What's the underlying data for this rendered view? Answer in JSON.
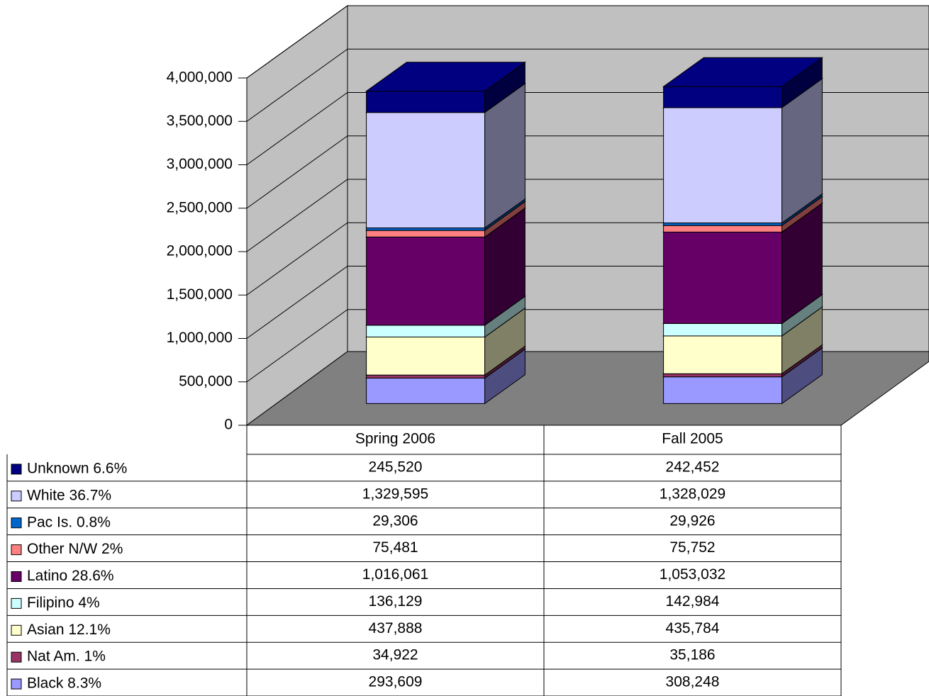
{
  "chart_data": {
    "type": "bar",
    "stacked": true,
    "categories": [
      "Spring 2006",
      "Fall 2005"
    ],
    "series": [
      {
        "name": "Unknown 6.6%",
        "color": "#000080",
        "values": [
          245520,
          242452
        ],
        "value_labels": [
          "245,520",
          "242,452"
        ]
      },
      {
        "name": "White 36.7%",
        "color": "#ccccff",
        "values": [
          1329595,
          1328029
        ],
        "value_labels": [
          "1,329,595",
          "1,328,029"
        ]
      },
      {
        "name": "Pac Is. 0.8%",
        "color": "#0066cc",
        "values": [
          29306,
          29926
        ],
        "value_labels": [
          "29,306",
          "29,926"
        ]
      },
      {
        "name": "Other N/W 2%",
        "color": "#ff8080",
        "values": [
          75481,
          75752
        ],
        "value_labels": [
          "75,481",
          "75,752"
        ]
      },
      {
        "name": "Latino 28.6%",
        "color": "#660066",
        "values": [
          1016061,
          1053032
        ],
        "value_labels": [
          "1,016,061",
          "1,053,032"
        ]
      },
      {
        "name": "Filipino 4%",
        "color": "#ccffff",
        "values": [
          136129,
          142984
        ],
        "value_labels": [
          "136,129",
          "142,984"
        ]
      },
      {
        "name": "Asian 12.1%",
        "color": "#ffffcc",
        "values": [
          437888,
          435784
        ],
        "value_labels": [
          "437,888",
          "435,784"
        ]
      },
      {
        "name": "Nat Am. 1%",
        "color": "#993366",
        "values": [
          34922,
          35186
        ],
        "value_labels": [
          "34,922",
          "35,186"
        ]
      },
      {
        "name": "Black 8.3%",
        "color": "#9999ff",
        "values": [
          293609,
          308248
        ],
        "value_labels": [
          "293,609",
          "308,248"
        ]
      }
    ],
    "ylim": [
      0,
      4000000
    ],
    "yticks": [
      0,
      {
        "value": 500000,
        "label": "500,000"
      },
      {
        "value": 1000000,
        "label": "1,000,000"
      },
      {
        "value": 1500000,
        "label": "1,500,000"
      },
      {
        "value": 2000000,
        "label": "2,000,000"
      },
      {
        "value": 2500000,
        "label": "2,500,000"
      },
      {
        "value": 3000000,
        "label": "3,000,000"
      },
      {
        "value": 3500000,
        "label": "3,500,000"
      },
      {
        "value": 4000000,
        "label": "4,000,000"
      }
    ],
    "grid": true
  }
}
